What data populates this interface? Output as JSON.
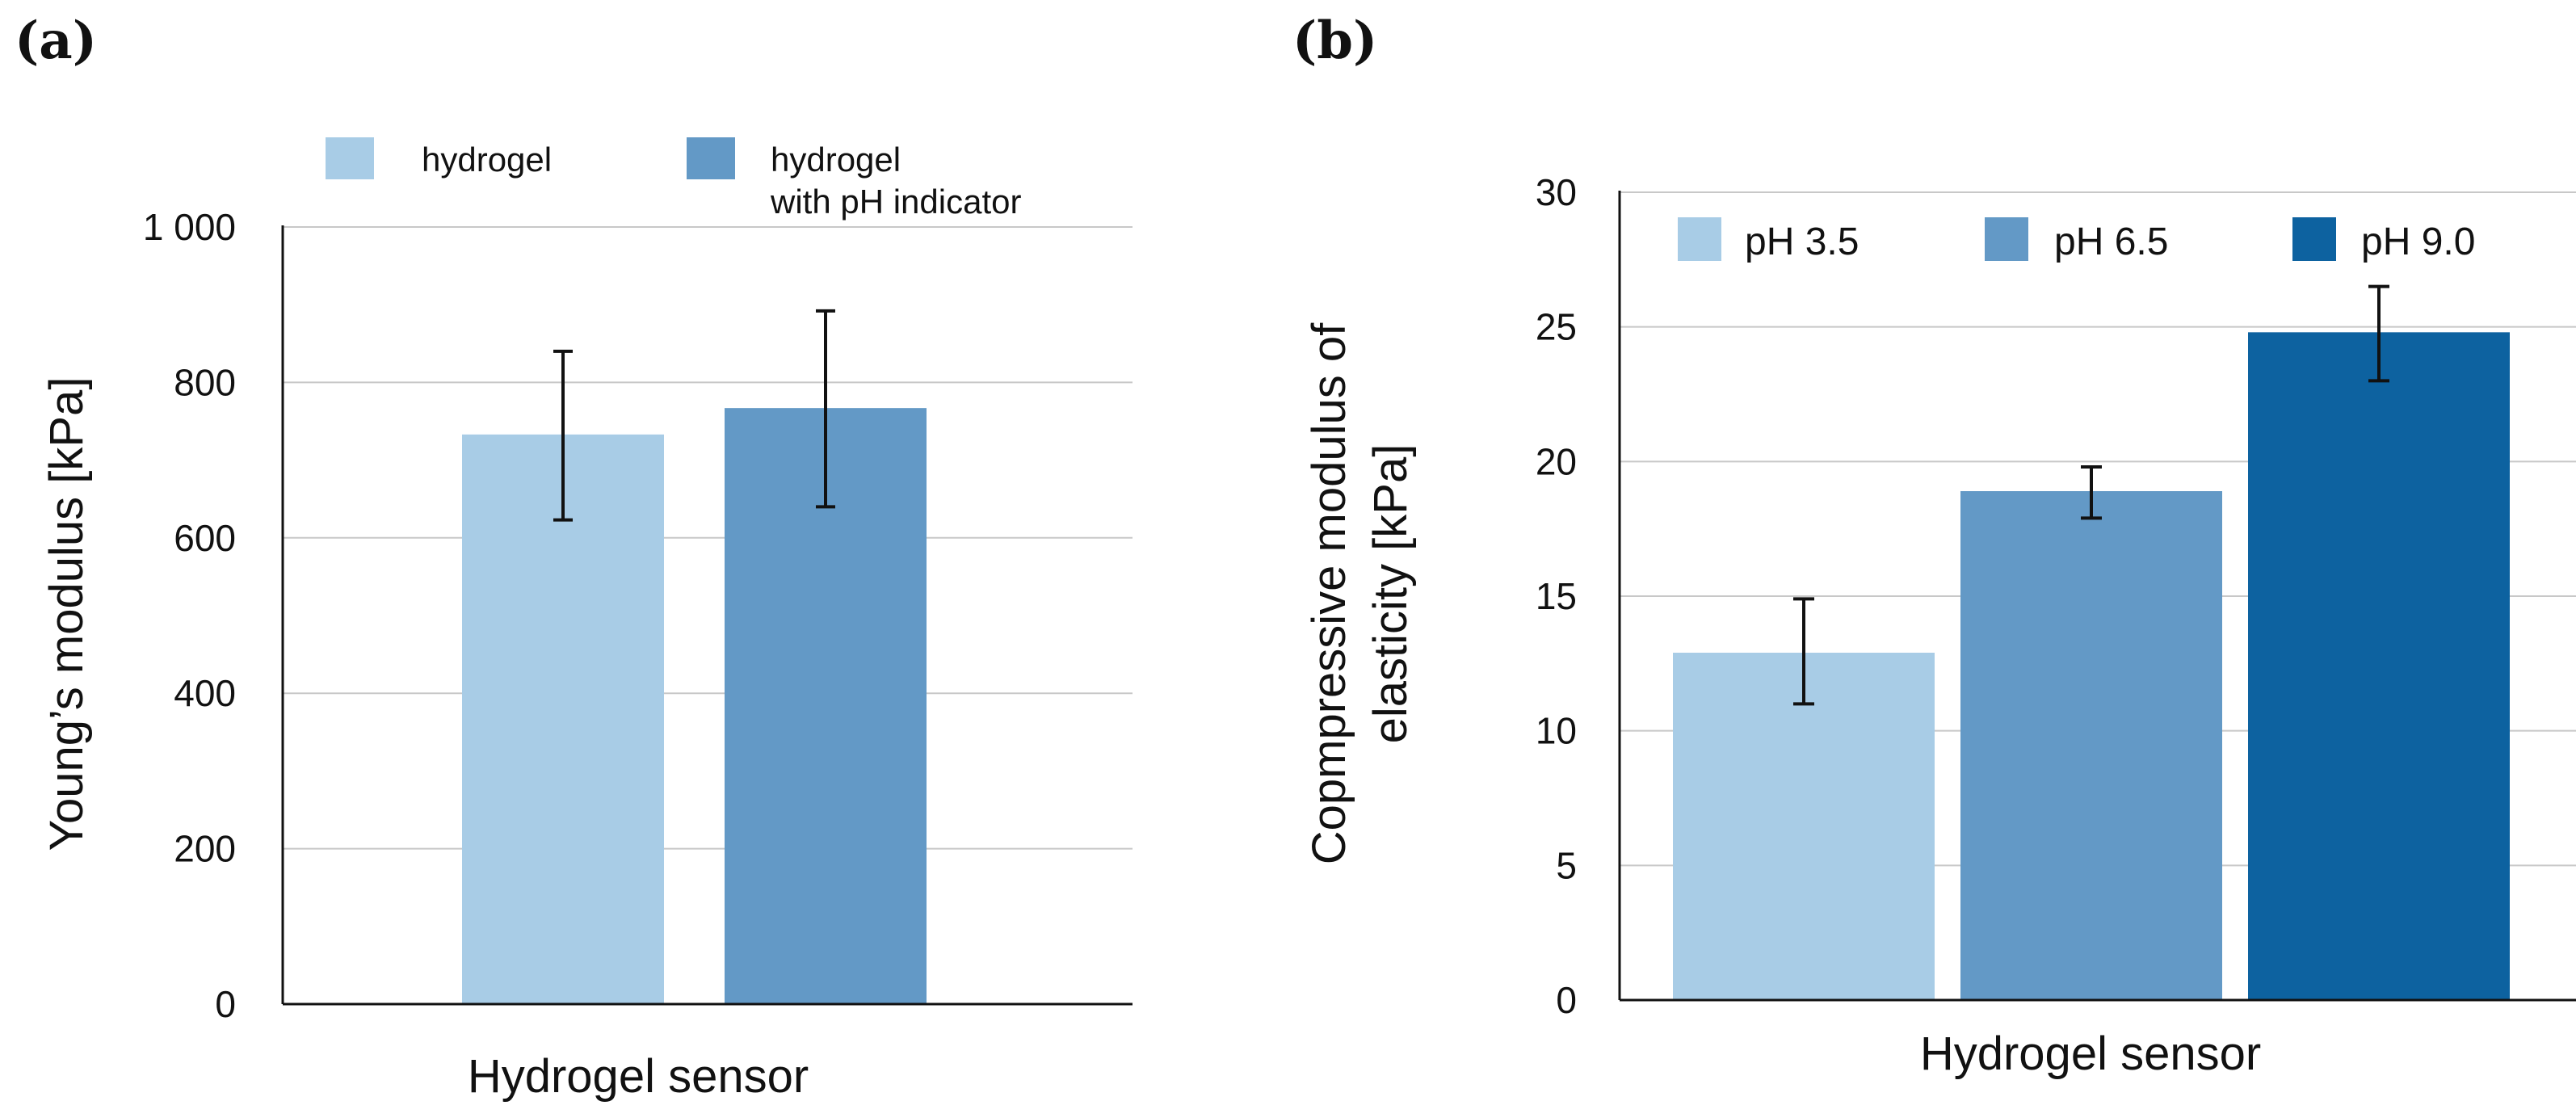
{
  "chart_data": [
    {
      "type": "bar",
      "panel_label": "(a)",
      "title": "",
      "xlabel": "Hydrogel sensor",
      "ylabel": "Young’s modulus [kPa]",
      "ylim": [
        0,
        1000
      ],
      "yticks": [
        0,
        200,
        400,
        600,
        800,
        1000
      ],
      "ytick_labels": [
        "0",
        "200",
        "400",
        "600",
        "800",
        "1 000"
      ],
      "grid": true,
      "legend_position": "top",
      "categories": [
        "Hydrogel sensor"
      ],
      "series": [
        {
          "name": "hydrogel",
          "legend_lines": [
            "hydrogel"
          ],
          "values": [
            733
          ],
          "error_low": [
            623
          ],
          "error_high": [
            840
          ],
          "color": "#a8cce6"
        },
        {
          "name": "hydrogel with pH indicator",
          "legend_lines": [
            "hydrogel",
            "with pH indicator"
          ],
          "values": [
            767
          ],
          "error_low": [
            640
          ],
          "error_high": [
            892
          ],
          "color": "#6399c6"
        }
      ]
    },
    {
      "type": "bar",
      "panel_label": "(b)",
      "title": "",
      "xlabel": "Hydrogel sensor",
      "ylabel": "Copmpressive modulus of elasticity [kPa]",
      "ylabel_lines": [
        "Copmpressive modulus of",
        "elasticity [kPa]"
      ],
      "ylim": [
        0,
        30
      ],
      "yticks": [
        0,
        5,
        10,
        15,
        20,
        25,
        30
      ],
      "ytick_labels": [
        "0",
        "5",
        "10",
        "15",
        "20",
        "25",
        "30"
      ],
      "grid": true,
      "legend_position": "top",
      "categories": [
        "Hydrogel sensor"
      ],
      "series": [
        {
          "name": "pH 3.5",
          "legend_lines": [
            "pH 3.5"
          ],
          "values": [
            12.9
          ],
          "error_low": [
            11.0
          ],
          "error_high": [
            14.9
          ],
          "color": "#a8cce6"
        },
        {
          "name": "pH 6.5",
          "legend_lines": [
            "pH 6.5"
          ],
          "values": [
            18.9
          ],
          "error_low": [
            17.9
          ],
          "error_high": [
            19.8
          ],
          "color": "#6399c6"
        },
        {
          "name": "pH 9.0",
          "legend_lines": [
            "pH 9.0"
          ],
          "values": [
            24.8
          ],
          "error_low": [
            23.0
          ],
          "error_high": [
            26.5
          ],
          "color": "#0d62a0"
        }
      ]
    }
  ]
}
